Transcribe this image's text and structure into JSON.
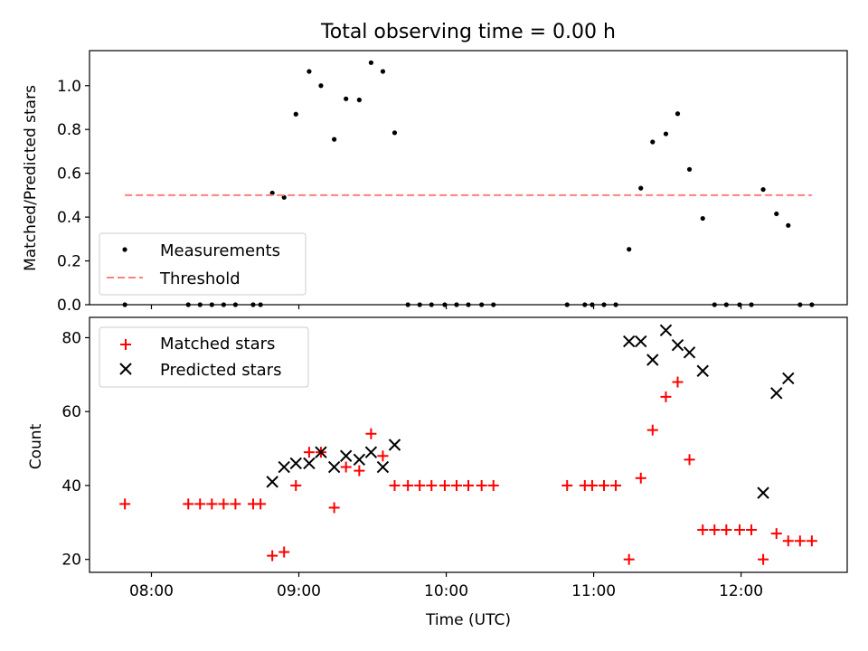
{
  "figure": {
    "title": "Total observing time = 0.00 h",
    "xlabel": "Time (UTC)",
    "xticks": [
      {
        "value": 8.0,
        "label": "08:00"
      },
      {
        "value": 9.0,
        "label": "09:00"
      },
      {
        "value": 10.0,
        "label": "10:00"
      },
      {
        "value": 11.0,
        "label": "11:00"
      },
      {
        "value": 12.0,
        "label": "12:00"
      }
    ],
    "xlim": [
      7.58,
      12.72
    ]
  },
  "chart_data": [
    {
      "type": "scatter",
      "ylabel": "Matched/Predicted stars",
      "ylim": [
        0,
        1.16
      ],
      "yticks": [
        {
          "value": 0.0,
          "label": "0.0"
        },
        {
          "value": 0.2,
          "label": "0.2"
        },
        {
          "value": 0.4,
          "label": "0.4"
        },
        {
          "value": 0.6,
          "label": "0.6"
        },
        {
          "value": 0.8,
          "label": "0.8"
        },
        {
          "value": 1.0,
          "label": "1.0"
        }
      ],
      "grid": false,
      "legend": "lower-left",
      "series": [
        {
          "name": "Measurements",
          "marker": "dot",
          "color": "#000000",
          "x": [
            7.82,
            8.25,
            8.33,
            8.41,
            8.49,
            8.57,
            8.69,
            8.74,
            8.82,
            8.9,
            8.98,
            9.07,
            9.15,
            9.24,
            9.32,
            9.41,
            9.49,
            9.57,
            9.65,
            9.74,
            9.82,
            9.9,
            9.99,
            10.07,
            10.15,
            10.24,
            10.32,
            10.82,
            10.94,
            10.99,
            11.07,
            11.15,
            11.24,
            11.32,
            11.4,
            11.49,
            11.57,
            11.65,
            11.74,
            11.82,
            11.9,
            11.99,
            12.07,
            12.15,
            12.24,
            12.32,
            12.4,
            12.48
          ],
          "y": [
            0.0,
            0.0,
            0.0,
            0.0,
            0.0,
            0.0,
            0.0,
            0.0,
            0.51,
            0.49,
            0.87,
            1.065,
            1.0,
            0.755,
            0.94,
            0.935,
            1.105,
            1.065,
            0.785,
            0.0,
            0.0,
            0.0,
            0.0,
            0.0,
            0.0,
            0.0,
            0.0,
            0.0,
            0.0,
            0.0,
            0.0,
            0.0,
            0.253,
            0.532,
            0.743,
            0.78,
            0.872,
            0.618,
            0.394,
            0.0,
            0.0,
            0.0,
            0.0,
            0.526,
            0.415,
            0.362,
            0.0,
            0.0
          ]
        },
        {
          "name": "Threshold",
          "marker": "dashed-line",
          "color": "#ff7f7f",
          "x": [
            7.82,
            12.48
          ],
          "y": [
            0.5,
            0.5
          ]
        }
      ]
    },
    {
      "type": "scatter",
      "ylabel": "Count",
      "ylim": [
        16.5,
        85.5
      ],
      "yticks": [
        {
          "value": 20,
          "label": "20"
        },
        {
          "value": 40,
          "label": "40"
        },
        {
          "value": 60,
          "label": "60"
        },
        {
          "value": 80,
          "label": "80"
        }
      ],
      "grid": false,
      "legend": "upper-left",
      "series": [
        {
          "name": "Matched stars",
          "marker": "plus",
          "color": "#ff0000",
          "x": [
            7.82,
            8.25,
            8.33,
            8.41,
            8.49,
            8.57,
            8.69,
            8.74,
            8.82,
            8.9,
            8.98,
            9.07,
            9.15,
            9.24,
            9.32,
            9.41,
            9.49,
            9.57,
            9.65,
            9.74,
            9.82,
            9.9,
            9.99,
            10.07,
            10.15,
            10.24,
            10.32,
            10.82,
            10.94,
            10.99,
            11.07,
            11.15,
            11.24,
            11.32,
            11.4,
            11.49,
            11.57,
            11.65,
            11.74,
            11.82,
            11.9,
            11.99,
            12.07,
            12.15,
            12.24,
            12.32,
            12.4,
            12.48
          ],
          "y": [
            35,
            35,
            35,
            35,
            35,
            35,
            35,
            35,
            21,
            22,
            40,
            49,
            49,
            34,
            45,
            44,
            54,
            48,
            40,
            40,
            40,
            40,
            40,
            40,
            40,
            40,
            40,
            40,
            40,
            40,
            40,
            40,
            20,
            42,
            55,
            64,
            68,
            47,
            28,
            28,
            28,
            28,
            28,
            20,
            27,
            25,
            25,
            25
          ]
        },
        {
          "name": "Predicted stars",
          "marker": "x",
          "color": "#000000",
          "x": [
            8.82,
            8.9,
            8.98,
            9.07,
            9.15,
            9.24,
            9.32,
            9.41,
            9.49,
            9.57,
            9.65,
            11.24,
            11.32,
            11.4,
            11.49,
            11.57,
            11.65,
            11.74,
            12.15,
            12.24,
            12.32
          ],
          "y": [
            41,
            45,
            46,
            46,
            49,
            45,
            48,
            47,
            49,
            45,
            51,
            79,
            79,
            74,
            82,
            78,
            76,
            71,
            38,
            65,
            69
          ]
        }
      ]
    }
  ]
}
